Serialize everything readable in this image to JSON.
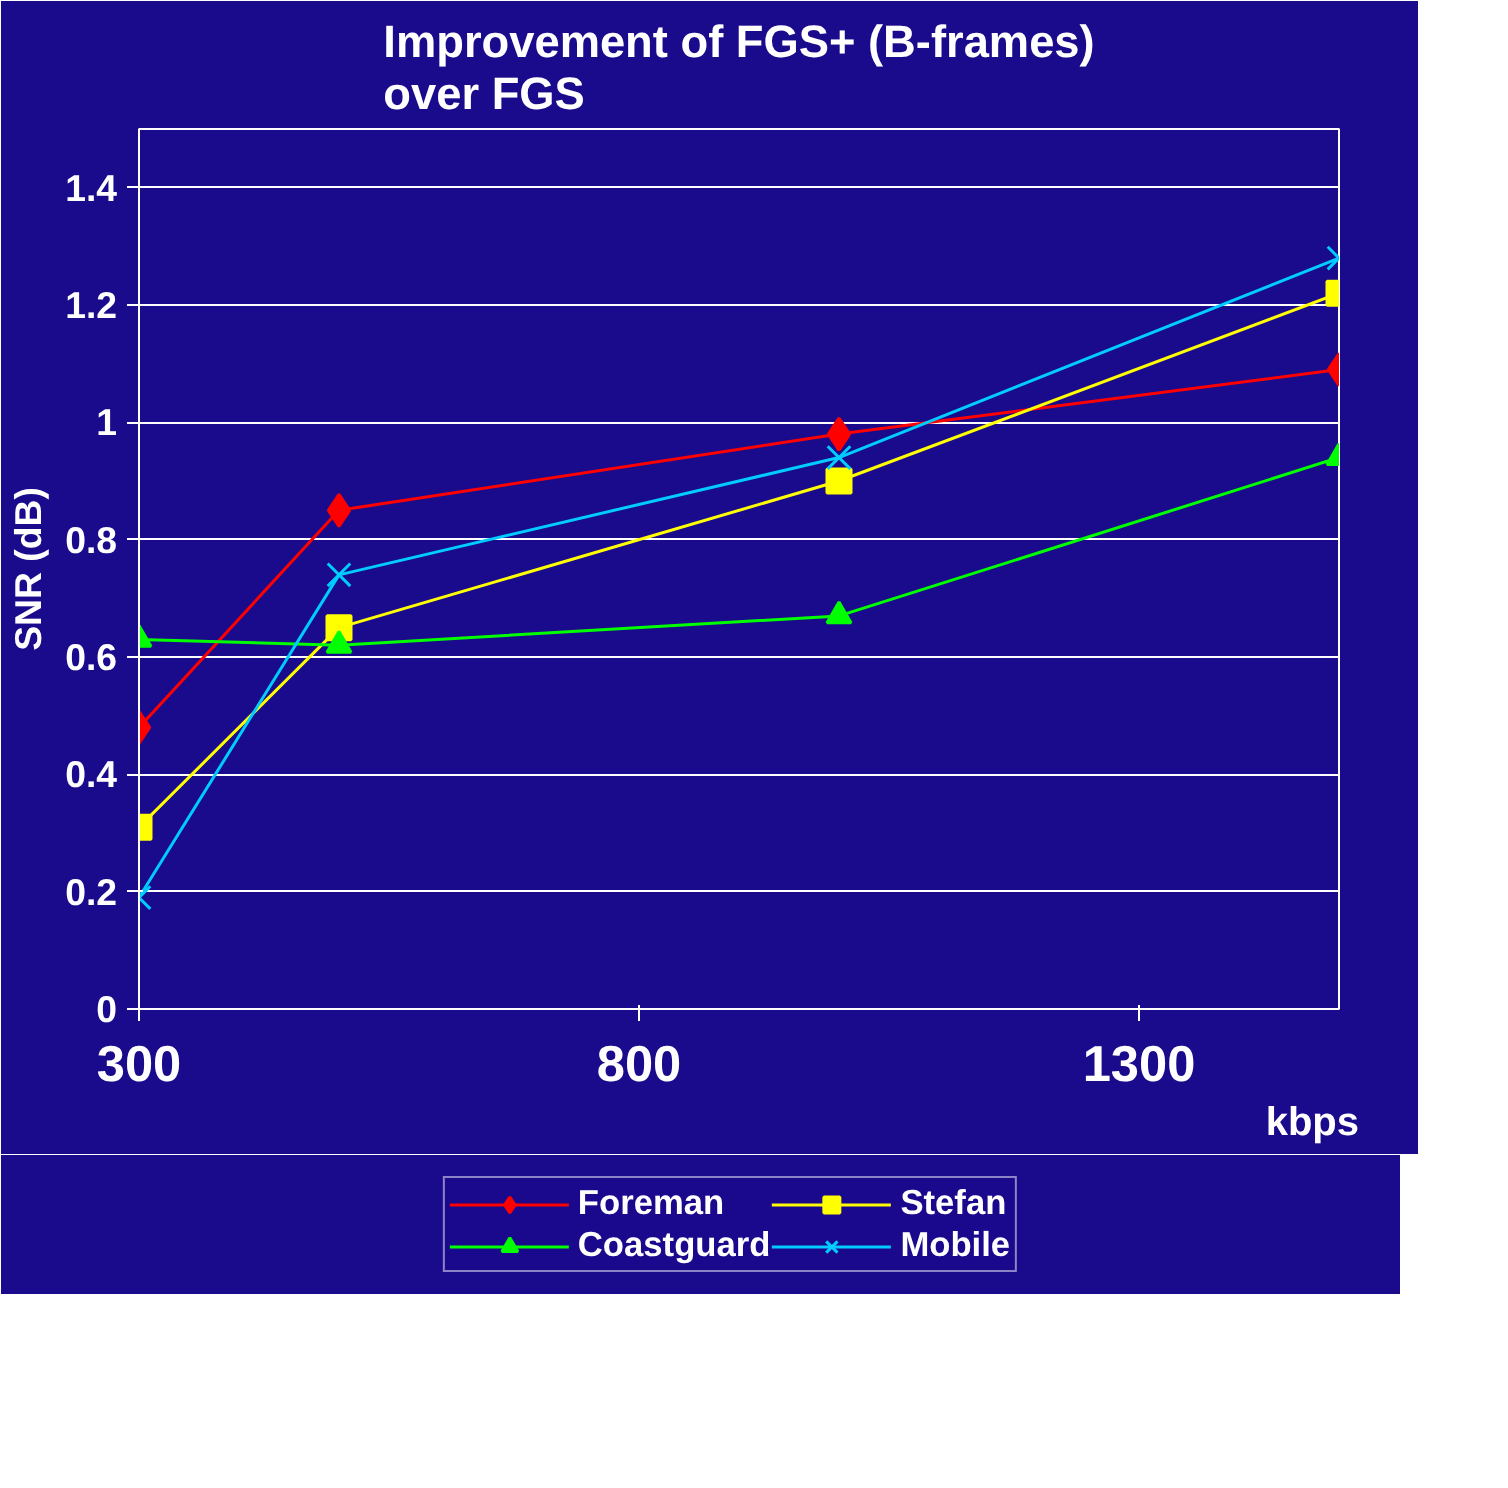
{
  "chart_data": {
    "type": "line",
    "title": "Improvement of FGS+ (B-frames) over FGS",
    "xlabel": "kbps",
    "ylabel": "SNR (dB)",
    "x": [
      300,
      500,
      1000,
      1500
    ],
    "series": [
      {
        "name": "Foreman",
        "color": "#ff0000",
        "marker": "diamond",
        "values": [
          0.48,
          0.85,
          0.98,
          1.09
        ]
      },
      {
        "name": "Stefan",
        "color": "#ffff00",
        "marker": "square",
        "values": [
          0.31,
          0.65,
          0.9,
          1.22
        ]
      },
      {
        "name": "Coastguard",
        "color": "#00ff00",
        "marker": "triangle",
        "values": [
          0.63,
          0.62,
          0.67,
          0.94
        ]
      },
      {
        "name": "Mobile",
        "color": "#00ccff",
        "marker": "cross",
        "values": [
          0.19,
          0.74,
          0.94,
          1.28
        ]
      }
    ],
    "xlim": [
      300,
      1500
    ],
    "xticks": [
      300,
      800,
      1300
    ],
    "ylim": [
      0,
      1.5
    ],
    "yticks": [
      0,
      0.2,
      0.4,
      0.6,
      0.8,
      1,
      1.2,
      1.4
    ],
    "grid": "y",
    "legend": "bottom"
  }
}
